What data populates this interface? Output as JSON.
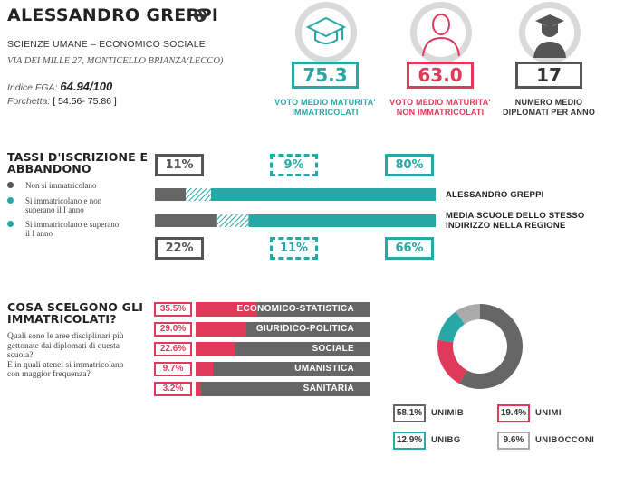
{
  "school": {
    "name": "ALESSANDRO GREPPI",
    "type": "SCIENZE UMANE – ECONOMICO SOCIALE",
    "address": "VIA DEI MILLE 27, MONTICELLO BRIANZA(LECCO)",
    "fga_label": "Indice FGA:",
    "fga_value": "64.94/100",
    "forchetta_label": "Forchetta:",
    "forchetta_value": "[ 54.56- 75.86 ]"
  },
  "stats": [
    {
      "value": "75.3",
      "label_line1": "VOTO MEDIO MATURITA'",
      "label_line2": "IMMATRICOLATI",
      "color": "#27a8a6",
      "icon": "graduation-cap-icon"
    },
    {
      "value": "63.0",
      "label_line1": "VOTO MEDIO MATURITA'",
      "label_line2": "NON IMMATRICOLATI",
      "color": "#e03a5a",
      "icon": "person-silhouette-icon"
    },
    {
      "value": "17",
      "label_line1": "NUMERO MEDIO",
      "label_line2": "DIPLOMATI PER ANNO",
      "color": "#555555",
      "icon": "graduate-person-icon"
    }
  ],
  "enrollment": {
    "title_line1": "TASSI D'ISCRIZIONE E",
    "title_line2": "ABBANDONO",
    "legend": [
      {
        "label": "Non si immatricolano",
        "color": "#555555"
      },
      {
        "label": "Si immatricolano e non superano il I anno",
        "color": "#27a8a6"
      },
      {
        "label": "Si immatricolano e superano il I anno",
        "color": "#27a8a6"
      }
    ],
    "school_pcts": [
      "11%",
      "9%",
      "80%"
    ],
    "region_pcts": [
      "22%",
      "11%",
      "66%"
    ],
    "school_bar_label": "ALESSANDRO GREPPI",
    "region_bar_label_line1": "MEDIA SCUOLE DELLO STESSO",
    "region_bar_label_line2": "INDIRIZZO NELLA REGIONE",
    "school_fractions": [
      0.11,
      0.09,
      0.8
    ],
    "region_fractions": [
      0.22,
      0.11,
      0.66
    ]
  },
  "choices": {
    "title_line1": "COSA SCELGONO GLI",
    "title_line2": "IMMATRICOLATI?",
    "desc_line1": "Quali sono le aree disciplinari più",
    "desc_line2": "gettonate dai diplomati di questa",
    "desc_line3": "scuola?",
    "desc_line4": "E in quali atenei si immatricolano",
    "desc_line5": "con maggior frequenza?",
    "areas": [
      {
        "pct": "35.5%",
        "name": "ECONOMICO-STATISTICA",
        "value": 35.5
      },
      {
        "pct": "29.0%",
        "name": "GIURIDICO-POLITICA",
        "value": 29.0
      },
      {
        "pct": "22.6%",
        "name": "SOCIALE",
        "value": 22.6
      },
      {
        "pct": "9.7%",
        "name": "UMANISTICA",
        "value": 9.7
      },
      {
        "pct": "3.2%",
        "name": "SANITARIA",
        "value": 3.2
      }
    ],
    "universities": [
      {
        "pct": "58.1%",
        "name": "UNIMIB",
        "value": 58.1,
        "color": "#666666"
      },
      {
        "pct": "19.4%",
        "name": "UNIMI",
        "value": 19.4,
        "color": "#e03a5a"
      },
      {
        "pct": "12.9%",
        "name": "UNIBG",
        "value": 12.9,
        "color": "#27a8a6"
      },
      {
        "pct": "9.6%",
        "name": "UNIBOCCONI",
        "value": 9.6,
        "color": "#aaaaaa"
      }
    ]
  }
}
